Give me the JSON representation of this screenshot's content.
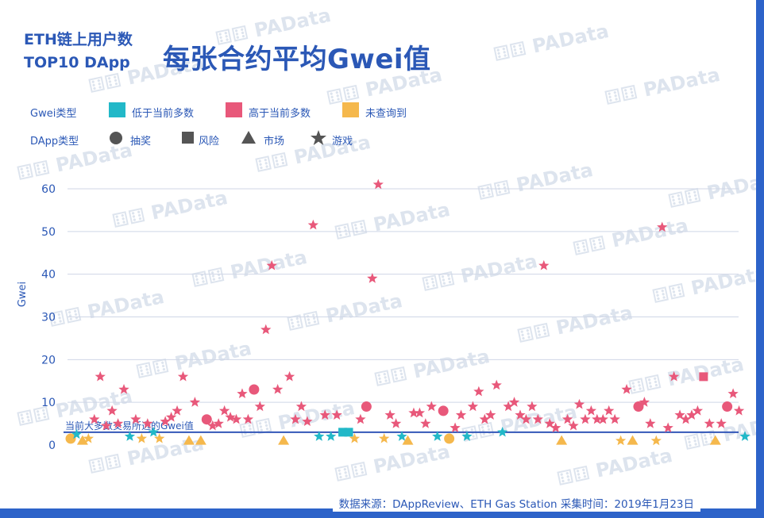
{
  "watermark": "⚅⚅ PAData",
  "source": "数据来源：DAppReview、ETH Gas Station  采集时间：2019年1月23日",
  "chart_data": {
    "type": "scatter",
    "title_line1": "ETH链上用户数",
    "title_line2": "TOP10 DApp",
    "title": "每张合约平均Gwei值",
    "ylabel": "Gwei",
    "xlabel": "",
    "ylim": [
      0,
      60
    ],
    "yticks": [
      0,
      10,
      20,
      30,
      40,
      50,
      60
    ],
    "grid": true,
    "reference_line": {
      "value": 3,
      "label": "当前大多数交易所选的Gwei值"
    },
    "legend": {
      "color_label": "Gwei类型",
      "colors": [
        {
          "key": "low",
          "label": "低于当前多数",
          "color": "#22b8c8"
        },
        {
          "key": "high",
          "label": "高于当前多数",
          "color": "#e8587a"
        },
        {
          "key": "unknown",
          "label": "未查询到",
          "color": "#f5b84c"
        }
      ],
      "shape_label": "DApp类型",
      "shapes": [
        {
          "key": "circle",
          "label": "抽奖"
        },
        {
          "key": "square",
          "label": "风险"
        },
        {
          "key": "triangle",
          "label": "市场"
        },
        {
          "key": "star",
          "label": "游戏"
        }
      ]
    },
    "points": [
      {
        "x": 1,
        "y": 1.5,
        "c": "unknown",
        "s": "circle"
      },
      {
        "x": 2,
        "y": 2.5,
        "c": "low",
        "s": "star"
      },
      {
        "x": 3,
        "y": 1,
        "c": "unknown",
        "s": "triangle"
      },
      {
        "x": 4,
        "y": 1.5,
        "c": "unknown",
        "s": "star"
      },
      {
        "x": 5,
        "y": 6,
        "c": "high",
        "s": "star"
      },
      {
        "x": 6,
        "y": 16,
        "c": "high",
        "s": "star"
      },
      {
        "x": 7,
        "y": 4.5,
        "c": "high",
        "s": "star"
      },
      {
        "x": 8,
        "y": 8,
        "c": "high",
        "s": "star"
      },
      {
        "x": 9,
        "y": 5,
        "c": "high",
        "s": "star"
      },
      {
        "x": 10,
        "y": 13,
        "c": "high",
        "s": "star"
      },
      {
        "x": 11,
        "y": 2,
        "c": "low",
        "s": "star"
      },
      {
        "x": 12,
        "y": 6,
        "c": "high",
        "s": "star"
      },
      {
        "x": 13,
        "y": 1.5,
        "c": "unknown",
        "s": "star"
      },
      {
        "x": 14,
        "y": 5,
        "c": "high",
        "s": "star"
      },
      {
        "x": 15,
        "y": 3,
        "c": "low",
        "s": "star"
      },
      {
        "x": 16,
        "y": 1.5,
        "c": "unknown",
        "s": "star"
      },
      {
        "x": 17,
        "y": 5.5,
        "c": "high",
        "s": "star"
      },
      {
        "x": 18,
        "y": 6.5,
        "c": "high",
        "s": "star"
      },
      {
        "x": 19,
        "y": 8,
        "c": "high",
        "s": "star"
      },
      {
        "x": 20,
        "y": 16,
        "c": "high",
        "s": "star"
      },
      {
        "x": 21,
        "y": 1,
        "c": "unknown",
        "s": "triangle"
      },
      {
        "x": 22,
        "y": 10,
        "c": "high",
        "s": "star"
      },
      {
        "x": 23,
        "y": 1,
        "c": "unknown",
        "s": "triangle"
      },
      {
        "x": 24,
        "y": 6,
        "c": "high",
        "s": "circle"
      },
      {
        "x": 25,
        "y": 4.5,
        "c": "high",
        "s": "star"
      },
      {
        "x": 26,
        "y": 5,
        "c": "high",
        "s": "star"
      },
      {
        "x": 27,
        "y": 8,
        "c": "high",
        "s": "star"
      },
      {
        "x": 28,
        "y": 6.5,
        "c": "high",
        "s": "star"
      },
      {
        "x": 29,
        "y": 6,
        "c": "high",
        "s": "star"
      },
      {
        "x": 30,
        "y": 12,
        "c": "high",
        "s": "star"
      },
      {
        "x": 31,
        "y": 6,
        "c": "high",
        "s": "star"
      },
      {
        "x": 32,
        "y": 13,
        "c": "high",
        "s": "circle"
      },
      {
        "x": 33,
        "y": 9,
        "c": "high",
        "s": "star"
      },
      {
        "x": 34,
        "y": 27,
        "c": "high",
        "s": "star"
      },
      {
        "x": 35,
        "y": 42,
        "c": "high",
        "s": "star"
      },
      {
        "x": 36,
        "y": 13,
        "c": "high",
        "s": "star"
      },
      {
        "x": 37,
        "y": 1,
        "c": "unknown",
        "s": "triangle"
      },
      {
        "x": 38,
        "y": 16,
        "c": "high",
        "s": "star"
      },
      {
        "x": 39,
        "y": 6,
        "c": "high",
        "s": "star"
      },
      {
        "x": 40,
        "y": 9,
        "c": "high",
        "s": "star"
      },
      {
        "x": 41,
        "y": 5.5,
        "c": "high",
        "s": "star"
      },
      {
        "x": 42,
        "y": 51.5,
        "c": "high",
        "s": "star"
      },
      {
        "x": 43,
        "y": 2,
        "c": "low",
        "s": "star"
      },
      {
        "x": 44,
        "y": 7,
        "c": "high",
        "s": "star"
      },
      {
        "x": 45,
        "y": 2,
        "c": "low",
        "s": "star"
      },
      {
        "x": 46,
        "y": 7,
        "c": "high",
        "s": "star"
      },
      {
        "x": 47,
        "y": 3,
        "c": "low",
        "s": "square"
      },
      {
        "x": 48,
        "y": 3,
        "c": "low",
        "s": "square"
      },
      {
        "x": 49,
        "y": 1.5,
        "c": "unknown",
        "s": "star"
      },
      {
        "x": 50,
        "y": 6,
        "c": "high",
        "s": "star"
      },
      {
        "x": 51,
        "y": 9,
        "c": "high",
        "s": "circle"
      },
      {
        "x": 52,
        "y": 39,
        "c": "high",
        "s": "star"
      },
      {
        "x": 53,
        "y": 61,
        "c": "high",
        "s": "star"
      },
      {
        "x": 54,
        "y": 1.5,
        "c": "unknown",
        "s": "star"
      },
      {
        "x": 55,
        "y": 7,
        "c": "high",
        "s": "star"
      },
      {
        "x": 56,
        "y": 5,
        "c": "high",
        "s": "star"
      },
      {
        "x": 57,
        "y": 2,
        "c": "low",
        "s": "star"
      },
      {
        "x": 58,
        "y": 1,
        "c": "unknown",
        "s": "triangle"
      },
      {
        "x": 59,
        "y": 7.5,
        "c": "high",
        "s": "star"
      },
      {
        "x": 60,
        "y": 7.5,
        "c": "high",
        "s": "star"
      },
      {
        "x": 61,
        "y": 5,
        "c": "high",
        "s": "star"
      },
      {
        "x": 62,
        "y": 9,
        "c": "high",
        "s": "star"
      },
      {
        "x": 63,
        "y": 2,
        "c": "low",
        "s": "star"
      },
      {
        "x": 64,
        "y": 8,
        "c": "high",
        "s": "circle"
      },
      {
        "x": 65,
        "y": 1.5,
        "c": "unknown",
        "s": "circle"
      },
      {
        "x": 66,
        "y": 4,
        "c": "high",
        "s": "star"
      },
      {
        "x": 67,
        "y": 7,
        "c": "high",
        "s": "star"
      },
      {
        "x": 68,
        "y": 2,
        "c": "low",
        "s": "star"
      },
      {
        "x": 69,
        "y": 9,
        "c": "high",
        "s": "star"
      },
      {
        "x": 70,
        "y": 12.5,
        "c": "high",
        "s": "star"
      },
      {
        "x": 71,
        "y": 6,
        "c": "high",
        "s": "star"
      },
      {
        "x": 72,
        "y": 7,
        "c": "high",
        "s": "star"
      },
      {
        "x": 73,
        "y": 14,
        "c": "high",
        "s": "star"
      },
      {
        "x": 74,
        "y": 3,
        "c": "low",
        "s": "star"
      },
      {
        "x": 75,
        "y": 9,
        "c": "high",
        "s": "star"
      },
      {
        "x": 76,
        "y": 10,
        "c": "high",
        "s": "star"
      },
      {
        "x": 77,
        "y": 7,
        "c": "high",
        "s": "star"
      },
      {
        "x": 78,
        "y": 6,
        "c": "high",
        "s": "star"
      },
      {
        "x": 79,
        "y": 9,
        "c": "high",
        "s": "star"
      },
      {
        "x": 80,
        "y": 6,
        "c": "high",
        "s": "star"
      },
      {
        "x": 81,
        "y": 42,
        "c": "high",
        "s": "star"
      },
      {
        "x": 82,
        "y": 5,
        "c": "high",
        "s": "star"
      },
      {
        "x": 83,
        "y": 4,
        "c": "high",
        "s": "star"
      },
      {
        "x": 84,
        "y": 1,
        "c": "unknown",
        "s": "triangle"
      },
      {
        "x": 85,
        "y": 6,
        "c": "high",
        "s": "star"
      },
      {
        "x": 86,
        "y": 4.5,
        "c": "high",
        "s": "star"
      },
      {
        "x": 87,
        "y": 9.5,
        "c": "high",
        "s": "star"
      },
      {
        "x": 88,
        "y": 6,
        "c": "high",
        "s": "star"
      },
      {
        "x": 89,
        "y": 8,
        "c": "high",
        "s": "star"
      },
      {
        "x": 90,
        "y": 6,
        "c": "high",
        "s": "star"
      },
      {
        "x": 91,
        "y": 6,
        "c": "high",
        "s": "star"
      },
      {
        "x": 92,
        "y": 8,
        "c": "high",
        "s": "star"
      },
      {
        "x": 93,
        "y": 6,
        "c": "high",
        "s": "star"
      },
      {
        "x": 94,
        "y": 1,
        "c": "unknown",
        "s": "star"
      },
      {
        "x": 95,
        "y": 13,
        "c": "high",
        "s": "star"
      },
      {
        "x": 96,
        "y": 1,
        "c": "unknown",
        "s": "triangle"
      },
      {
        "x": 97,
        "y": 9,
        "c": "high",
        "s": "circle"
      },
      {
        "x": 98,
        "y": 10,
        "c": "high",
        "s": "star"
      },
      {
        "x": 99,
        "y": 5,
        "c": "high",
        "s": "star"
      },
      {
        "x": 100,
        "y": 1,
        "c": "unknown",
        "s": "star"
      },
      {
        "x": 101,
        "y": 51,
        "c": "high",
        "s": "star"
      },
      {
        "x": 102,
        "y": 4,
        "c": "high",
        "s": "star"
      },
      {
        "x": 103,
        "y": 16,
        "c": "high",
        "s": "star"
      },
      {
        "x": 104,
        "y": 7,
        "c": "high",
        "s": "star"
      },
      {
        "x": 105,
        "y": 6,
        "c": "high",
        "s": "star"
      },
      {
        "x": 106,
        "y": 7,
        "c": "high",
        "s": "star"
      },
      {
        "x": 107,
        "y": 8,
        "c": "high",
        "s": "star"
      },
      {
        "x": 108,
        "y": 16,
        "c": "high",
        "s": "square"
      },
      {
        "x": 109,
        "y": 5,
        "c": "high",
        "s": "star"
      },
      {
        "x": 110,
        "y": 1,
        "c": "unknown",
        "s": "triangle"
      },
      {
        "x": 111,
        "y": 5,
        "c": "high",
        "s": "star"
      },
      {
        "x": 112,
        "y": 9,
        "c": "high",
        "s": "circle"
      },
      {
        "x": 113,
        "y": 12,
        "c": "high",
        "s": "star"
      },
      {
        "x": 114,
        "y": 8,
        "c": "high",
        "s": "star"
      },
      {
        "x": 115,
        "y": 2,
        "c": "low",
        "s": "star"
      }
    ]
  }
}
